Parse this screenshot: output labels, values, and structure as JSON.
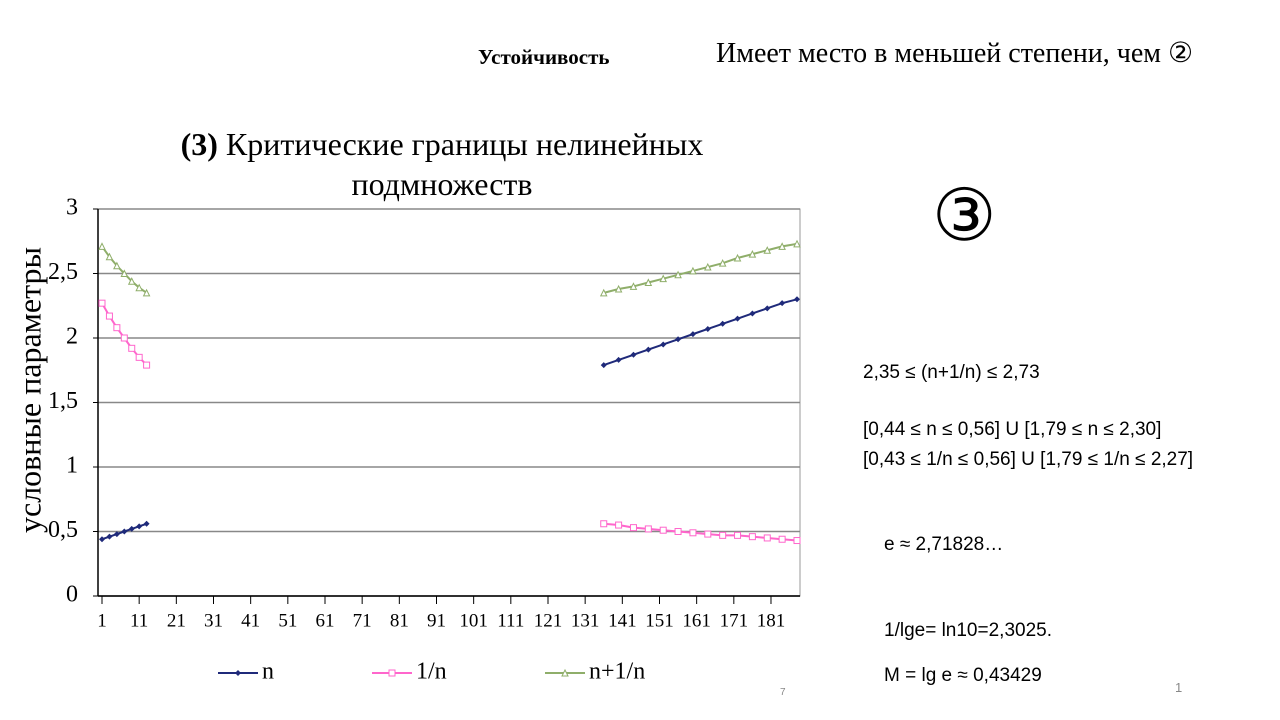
{
  "header": {
    "label": "Устойчивость",
    "text": "Имеет место в меньшей степени, чем ②"
  },
  "chart_data": {
    "type": "line",
    "title_prefix": "(3)",
    "title": "Критические границы нелинейных подмножеств",
    "y_label": "условные параметры",
    "x": [
      1,
      3,
      5,
      7,
      9,
      11,
      13,
      75,
      136,
      140,
      144,
      148,
      152,
      156,
      160,
      164,
      168,
      172,
      176,
      180,
      184,
      188
    ],
    "series": [
      {
        "name": "n",
        "color": "#1f2a7a",
        "marker": "diamond",
        "values": [
          0.44,
          0.46,
          0.48,
          0.5,
          0.52,
          0.54,
          0.56,
          null,
          1.79,
          1.83,
          1.87,
          1.91,
          1.95,
          1.99,
          2.03,
          2.07,
          2.11,
          2.15,
          2.19,
          2.23,
          2.27,
          2.3
        ]
      },
      {
        "name": "1/n",
        "color": "#ff66cc",
        "marker": "square",
        "values": [
          2.27,
          2.17,
          2.08,
          2.0,
          1.92,
          1.85,
          1.79,
          null,
          0.56,
          0.55,
          0.53,
          0.52,
          0.51,
          0.5,
          0.49,
          0.48,
          0.47,
          0.47,
          0.46,
          0.45,
          0.44,
          0.43
        ]
      },
      {
        "name": "n+1/n",
        "color": "#8fae6a",
        "marker": "triangle",
        "values": [
          2.71,
          2.63,
          2.56,
          2.5,
          2.44,
          2.39,
          2.35,
          null,
          2.35,
          2.38,
          2.4,
          2.43,
          2.46,
          2.49,
          2.52,
          2.55,
          2.58,
          2.62,
          2.65,
          2.68,
          2.71,
          2.73
        ]
      }
    ],
    "xlim": [
      1,
      188
    ],
    "xticks": [
      1,
      11,
      21,
      31,
      41,
      51,
      61,
      71,
      81,
      91,
      101,
      111,
      121,
      131,
      141,
      151,
      161,
      171,
      181
    ],
    "ylim": [
      0,
      3
    ],
    "yticks": [
      0,
      {
        "value": 0.5,
        "label": "0,5"
      },
      1,
      {
        "value": 1.5,
        "label": "1,5"
      },
      2,
      {
        "value": 2.5,
        "label": "2,5"
      },
      3
    ],
    "grid": true,
    "legend": "bottom"
  },
  "badge": "③",
  "notes": [
    "2,35 ≤ (n+1/n) ≤ 2,73",
    "[0,44 ≤ n ≤ 0,56] U [1,79 ≤ n ≤ 2,30]",
    "[0,43 ≤ 1/n ≤ 0,56] U [1,79 ≤ 1/n ≤ 2,27]",
    "e ≈ 2,71828…",
    "1/lge=  ln10=2,3025.",
    "M = lg e ≈ 0,43429"
  ],
  "page_numbers": [
    "7",
    "1"
  ]
}
